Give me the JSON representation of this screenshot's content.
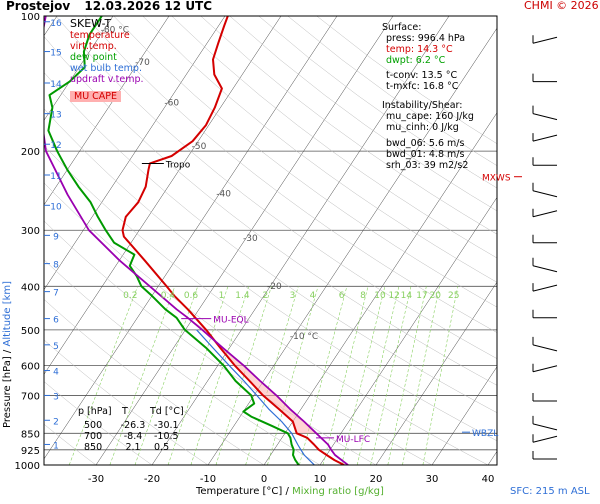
{
  "header": {
    "station": "Prostejov",
    "datetime": "12.03.2026 12 UTC",
    "credit": "CHMI © 2026",
    "chart_type": "SKEW-T"
  },
  "legend": {
    "temperature": "temperature",
    "virt_temp": "virt.temp.",
    "dew_point": "dew point",
    "wet_bulb": "wet bulb temp.",
    "updraft": "updraft v.temp.",
    "mu_cape": "MU CAPE"
  },
  "surface": {
    "title": "Surface:",
    "press": "press: 996.4 hPa",
    "temp": "temp: 14.3 °C",
    "dwpt": "dwpt: 6.2 °C",
    "tconv": "t-conv: 13.5 °C",
    "tmxfc": "t-mxfc: 16.8 °C"
  },
  "instability": {
    "title": "Instability/Shear:",
    "mu_cape": "mu_cape: 160 J/kg",
    "mu_cinh": "mu_cinh: 0 J/kg",
    "bwd_06": "bwd_06: 5.6 m/s",
    "bwd_01": "bwd_01: 4.8 m/s",
    "srh_03": "srh_03: 39 m2/s2"
  },
  "table": {
    "headers": [
      "p [hPa]",
      "T",
      "Td [°C]"
    ],
    "rows": [
      [
        "500",
        "-26.3",
        "-30.1"
      ],
      [
        "700",
        "-8.4",
        "-10.5"
      ],
      [
        "850",
        "2.1",
        "0.5"
      ]
    ]
  },
  "levels": {
    "tropo": "Tropo",
    "mu_eql": "MU-EQL",
    "mu_lfc": "MU-LFC",
    "wbzl": "WBZL",
    "mxws": "MXWS"
  },
  "axes": {
    "ylabel_pressure": "Pressure [hPa]",
    "ylabel_sep": "/",
    "ylabel_altitude": "Altitude [km]",
    "xlabel_temp": "Temperature [°C]",
    "xlabel_sep": "/",
    "xlabel_mixing": "Mixing ratio [g/kg]",
    "sfc": "SFC: 215 m ASL"
  },
  "colors": {
    "temperature": "#d40000",
    "dew_point": "#009900",
    "wet_bulb": "#2f6fd6",
    "updraft": "#9a00b0",
    "mixing": "#88d060",
    "isotherm": "#444444",
    "mu_cape_fill": "#ffb0b0"
  },
  "chart_data": {
    "type": "line",
    "title": "SKEW-T",
    "xlabel": "Temperature [°C]",
    "ylabel": "Pressure [hPa]",
    "pressure_ticks": [
      100,
      200,
      300,
      400,
      500,
      600,
      700,
      850,
      925,
      1000
    ],
    "pressure_tick_labels": [
      "100",
      "200",
      "300",
      "400",
      "500",
      "600",
      "700",
      "850",
      "925",
      "1000"
    ],
    "temp_ticks": [
      -30,
      -20,
      -10,
      0,
      10,
      20,
      30,
      40
    ],
    "temp_tick_labels": [
      "-30",
      "-20",
      "-10",
      "0",
      "10",
      "20",
      "30",
      "40"
    ],
    "altitude_ticks": [
      {
        "km": 1,
        "p": 900
      },
      {
        "km": 2,
        "p": 795
      },
      {
        "km": 3,
        "p": 700
      },
      {
        "km": 4,
        "p": 616
      },
      {
        "km": 5,
        "p": 540
      },
      {
        "km": 6,
        "p": 472
      },
      {
        "km": 7,
        "p": 411
      },
      {
        "km": 8,
        "p": 356
      },
      {
        "km": 9,
        "p": 308
      },
      {
        "km": 10,
        "p": 264
      },
      {
        "km": 11,
        "p": 226
      },
      {
        "km": 12,
        "p": 193
      },
      {
        "km": 13,
        "p": 165
      },
      {
        "km": 14,
        "p": 141
      },
      {
        "km": 15,
        "p": 120
      },
      {
        "km": 16,
        "p": 103
      }
    ],
    "isotherm_labels": [
      {
        "t": -80,
        "label": "-80 °C"
      },
      {
        "t": -70,
        "label": "-70"
      },
      {
        "t": -60,
        "label": "-60"
      },
      {
        "t": -50,
        "label": "-50"
      },
      {
        "t": -40,
        "label": "-40"
      },
      {
        "t": -30,
        "label": "-30"
      },
      {
        "t": -20,
        "label": "-20"
      },
      {
        "t": -10,
        "label": "-10 °C"
      }
    ],
    "mixing_ratio_lines": [
      {
        "w": 0.2,
        "label": "0.2"
      },
      {
        "w": 0.4,
        "label": "0.4"
      },
      {
        "w": 0.6,
        "label": "0.6"
      },
      {
        "w": 1,
        "label": "1"
      },
      {
        "w": 1.4,
        "label": "1.4"
      },
      {
        "w": 2,
        "label": "2"
      },
      {
        "w": 3,
        "label": "3"
      },
      {
        "w": 4,
        "label": "4"
      },
      {
        "w": 6,
        "label": "6"
      },
      {
        "w": 8,
        "label": "8"
      },
      {
        "w": 10,
        "label": "10"
      },
      {
        "w": 12,
        "label": "12"
      },
      {
        "w": 14,
        "label": "14"
      },
      {
        "w": 17,
        "label": "17"
      },
      {
        "w": 20,
        "label": "20"
      },
      {
        "w": 25,
        "label": "25"
      }
    ],
    "series": [
      {
        "name": "temperature",
        "color": "#d40000",
        "points": [
          [
            1000,
            14.3
          ],
          [
            975,
            12.0
          ],
          [
            950,
            10.0
          ],
          [
            925,
            8.0
          ],
          [
            900,
            6.5
          ],
          [
            870,
            4.5
          ],
          [
            850,
            2.1
          ],
          [
            800,
            0.0
          ],
          [
            750,
            -4.0
          ],
          [
            700,
            -8.4
          ],
          [
            650,
            -12.5
          ],
          [
            600,
            -17.0
          ],
          [
            550,
            -21.5
          ],
          [
            500,
            -26.3
          ],
          [
            450,
            -32.0
          ],
          [
            420,
            -36.0
          ],
          [
            400,
            -38.5
          ],
          [
            350,
            -45.5
          ],
          [
            310,
            -52.0
          ],
          [
            300,
            -53.0
          ],
          [
            280,
            -54.0
          ],
          [
            260,
            -53.5
          ],
          [
            240,
            -54.0
          ],
          [
            220,
            -55.5
          ],
          [
            213,
            -56.0
          ],
          [
            205,
            -53.0
          ],
          [
            190,
            -51.0
          ],
          [
            175,
            -50.5
          ],
          [
            160,
            -51.0
          ],
          [
            145,
            -52.0
          ],
          [
            135,
            -55.0
          ],
          [
            125,
            -57.0
          ],
          [
            115,
            -58.0
          ],
          [
            105,
            -59.0
          ],
          [
            100,
            -59.5
          ]
        ]
      },
      {
        "name": "dew point",
        "color": "#009900",
        "points": [
          [
            1000,
            6.2
          ],
          [
            975,
            5.0
          ],
          [
            950,
            4.0
          ],
          [
            925,
            3.5
          ],
          [
            900,
            2.5
          ],
          [
            870,
            1.5
          ],
          [
            850,
            0.5
          ],
          [
            820,
            -3.0
          ],
          [
            780,
            -8.0
          ],
          [
            760,
            -10.0
          ],
          [
            730,
            -9.0
          ],
          [
            700,
            -10.5
          ],
          [
            650,
            -15.0
          ],
          [
            600,
            -19.0
          ],
          [
            550,
            -24.0
          ],
          [
            500,
            -30.1
          ],
          [
            470,
            -33.0
          ],
          [
            450,
            -36.0
          ],
          [
            420,
            -40.0
          ],
          [
            400,
            -43.0
          ],
          [
            380,
            -45.0
          ],
          [
            360,
            -47.5
          ],
          [
            340,
            -48.0
          ],
          [
            320,
            -53.0
          ],
          [
            300,
            -56.0
          ],
          [
            280,
            -59.0
          ],
          [
            260,
            -62.0
          ],
          [
            240,
            -66.0
          ],
          [
            220,
            -70.0
          ],
          [
            200,
            -74.0
          ],
          [
            180,
            -78.0
          ],
          [
            160,
            -80.0
          ],
          [
            150,
            -82.0
          ],
          [
            140,
            -80.0
          ],
          [
            130,
            -79.0
          ],
          [
            120,
            -81.0
          ],
          [
            110,
            -82.0
          ],
          [
            100,
            -82.0
          ]
        ]
      },
      {
        "name": "wet bulb temp.",
        "color": "#2f6fd6",
        "points": [
          [
            1000,
            9.0
          ],
          [
            975,
            7.5
          ],
          [
            950,
            6.0
          ],
          [
            925,
            4.8
          ],
          [
            900,
            3.6
          ],
          [
            850,
            1.2
          ],
          [
            800,
            -2.0
          ],
          [
            750,
            -5.8
          ],
          [
            700,
            -9.5
          ],
          [
            650,
            -13.5
          ],
          [
            600,
            -18.0
          ],
          [
            550,
            -22.8
          ],
          [
            500,
            -28.0
          ]
        ]
      },
      {
        "name": "updraft v.temp.",
        "color": "#9a00b0",
        "points": [
          [
            1000,
            15.0
          ],
          [
            950,
            11.5
          ],
          [
            925,
            10.2
          ],
          [
            900,
            9.0
          ],
          [
            850,
            5.6
          ],
          [
            800,
            2.0
          ],
          [
            750,
            -2.0
          ],
          [
            700,
            -6.0
          ],
          [
            650,
            -10.6
          ],
          [
            600,
            -15.4
          ],
          [
            550,
            -21.0
          ],
          [
            500,
            -27.0
          ],
          [
            470,
            -31.0
          ],
          [
            450,
            -34.0
          ],
          [
            400,
            -41.5
          ],
          [
            350,
            -50.0
          ],
          [
            300,
            -59.0
          ],
          [
            250,
            -67.0
          ],
          [
            200,
            -76.0
          ],
          [
            150,
            -84.0
          ],
          [
            120,
            -89.0
          ],
          [
            100,
            -92.0
          ]
        ]
      }
    ],
    "wind_barbs": [
      {
        "p": 115,
        "label": "barb"
      },
      {
        "p": 140,
        "label": "barb"
      },
      {
        "p": 165,
        "label": "barb"
      },
      {
        "p": 190,
        "label": "barb"
      },
      {
        "p": 215,
        "label": "barb"
      },
      {
        "p": 245,
        "label": "barb"
      },
      {
        "p": 280,
        "label": "barb"
      },
      {
        "p": 320,
        "label": "barb"
      },
      {
        "p": 360,
        "label": "barb"
      },
      {
        "p": 410,
        "label": "barb"
      },
      {
        "p": 470,
        "label": "barb"
      },
      {
        "p": 540,
        "label": "barb"
      },
      {
        "p": 620,
        "label": "barb"
      },
      {
        "p": 720,
        "label": "barb"
      },
      {
        "p": 810,
        "label": "barb"
      },
      {
        "p": 890,
        "label": "barb"
      },
      {
        "p": 970,
        "label": "barb"
      }
    ]
  }
}
